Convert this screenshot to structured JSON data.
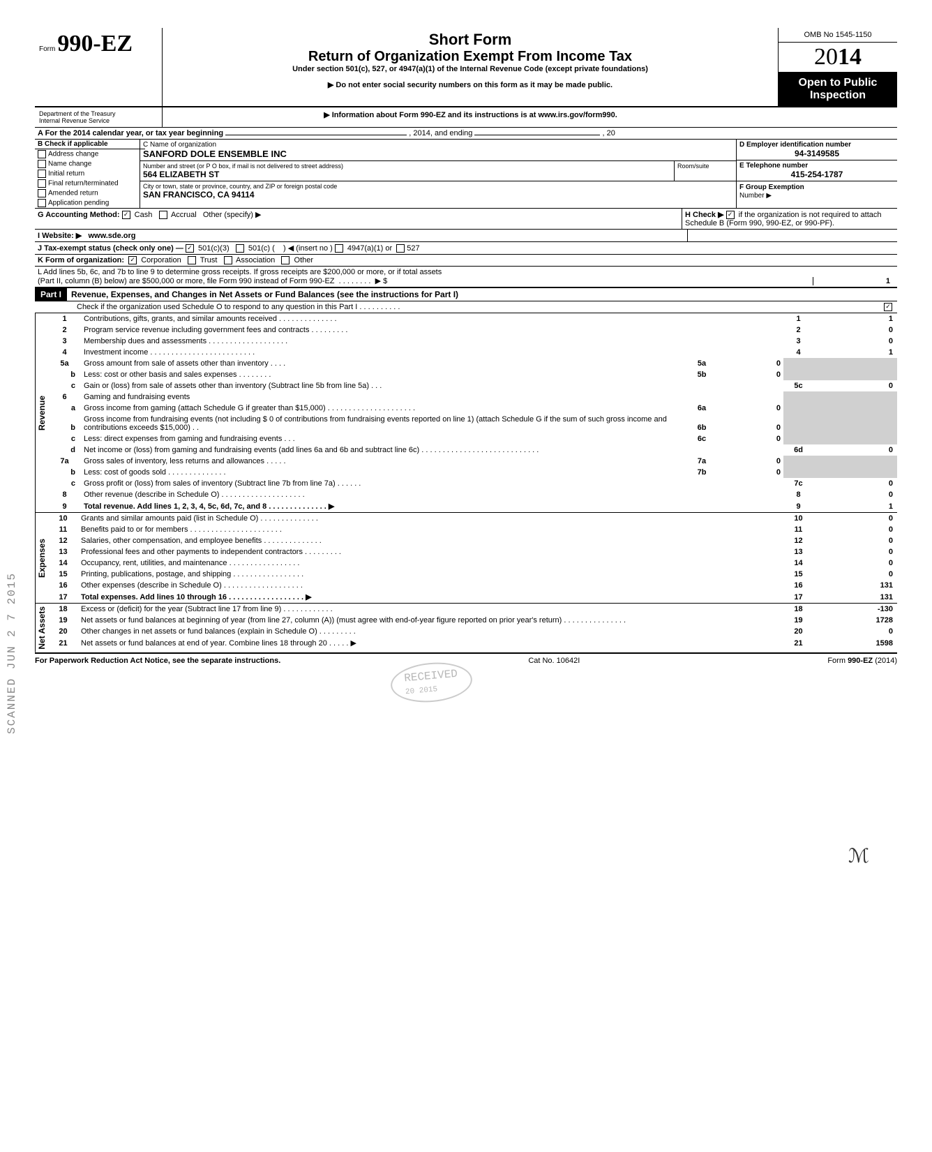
{
  "header": {
    "form_label": "Form",
    "form_number": "990-EZ",
    "title_main": "Short Form",
    "title_sub": "Return of Organization Exempt From Income Tax",
    "title_under": "Under section 501(c), 527, or 4947(a)(1) of the Internal Revenue Code (except private foundations)",
    "arrow1": "▶ Do not enter social security numbers on this form as it may be made public.",
    "arrow2": "▶ Information about Form 990-EZ and its instructions is at www.irs.gov/form990.",
    "omb": "OMB No 1545-1150",
    "year": "2014",
    "open": "Open to Public Inspection",
    "dept": "Department of the Treasury\nInternal Revenue Service"
  },
  "A": {
    "label": "A For the 2014 calendar year, or tax year beginning",
    "mid": ", 2014, and ending",
    "end": ", 20"
  },
  "B": {
    "label": "B Check if applicable",
    "items": [
      "Address change",
      "Name change",
      "Initial return",
      "Final return/terminated",
      "Amended return",
      "Application pending"
    ]
  },
  "C": {
    "label": "C Name of organization",
    "name": "SANFORD DOLE ENSEMBLE INC",
    "street_label": "Number and street (or P O box, if mail is not delivered to street address)",
    "room_label": "Room/suite",
    "street": "564 ELIZABETH ST",
    "city_label": "City or town, state or province, country, and ZIP or foreign postal code",
    "city": "SAN FRANCISCO, CA 94114"
  },
  "D": {
    "label": "D Employer identification number",
    "value": "94-3149585"
  },
  "E": {
    "label": "E Telephone number",
    "value": "415-254-1787"
  },
  "F": {
    "label": "F Group Exemption",
    "sub": "Number ▶"
  },
  "G": {
    "label": "G Accounting Method:",
    "cash": "Cash",
    "accrual": "Accrual",
    "other": "Other (specify) ▶"
  },
  "H": {
    "label": "H Check ▶",
    "text": "if the organization is not required to attach Schedule B (Form 990, 990-EZ, or 990-PF)."
  },
  "I": {
    "label": "I Website: ▶",
    "value": "www.sde.org"
  },
  "J": {
    "label": "J Tax-exempt status (check only one) —",
    "a": "501(c)(3)",
    "b": "501(c) (",
    "c": ") ◀ (insert no )",
    "d": "4947(a)(1) or",
    "e": "527"
  },
  "K": {
    "label": "K Form of organization:",
    "corp": "Corporation",
    "trust": "Trust",
    "assoc": "Association",
    "other": "Other"
  },
  "L": {
    "line1": "L Add lines 5b, 6c, and 7b to line 9 to determine gross receipts. If gross receipts are $200,000 or more, or if total assets",
    "line2": "(Part II, column (B) below) are $500,000 or more, file Form 990 instead of Form 990-EZ",
    "arrow": "▶  $",
    "val": "1"
  },
  "part1": {
    "tag": "Part I",
    "title": "Revenue, Expenses, and Changes in Net Assets or Fund Balances (see the instructions for Part I)",
    "check": "Check if the organization used Schedule O to respond to any question in this Part I . . . . . . . . . .",
    "checked": "✓"
  },
  "sections": {
    "revenue": "Revenue",
    "expenses": "Expenses",
    "netassets": "Net Assets"
  },
  "lines": [
    {
      "n": "1",
      "d": "Contributions, gifts, grants, and similar amounts received . . . . . . . . . . . . . .",
      "nc": "1",
      "v": "1"
    },
    {
      "n": "2",
      "d": "Program service revenue including government fees and contracts . . . . . . . . .",
      "nc": "2",
      "v": "0"
    },
    {
      "n": "3",
      "d": "Membership dues and assessments . . . .   . . . . . . . . . . . . . . .",
      "nc": "3",
      "v": "0"
    },
    {
      "n": "4",
      "d": "Investment income   . . . . . . . . . . . . . . . . . . . . . . . . .",
      "nc": "4",
      "v": "1"
    },
    {
      "n": "5a",
      "d": "Gross amount from sale of assets other than inventory . . . .",
      "mn": "5a",
      "mv": "0"
    },
    {
      "n": "b",
      "d": "Less: cost or other basis and sales expenses . . . . . . . .",
      "mn": "5b",
      "mv": "0"
    },
    {
      "n": "c",
      "d": "Gain or (loss) from sale of assets other than inventory (Subtract line 5b from line 5a) . . .",
      "nc": "5c",
      "v": "0"
    },
    {
      "n": "6",
      "d": "Gaming and fundraising events"
    },
    {
      "n": "a",
      "d": "Gross income from gaming (attach Schedule G if greater than $15,000) . . . . . . . . . . . . . . . . . . . . .",
      "mn": "6a",
      "mv": "0"
    },
    {
      "n": "b",
      "d": "Gross income from fundraising events (not including  $                0 of contributions from fundraising events reported on line 1) (attach Schedule G if the sum of such gross income and contributions exceeds $15,000) . .",
      "mn": "6b",
      "mv": "0"
    },
    {
      "n": "c",
      "d": "Less: direct expenses from gaming and fundraising events . . .",
      "mn": "6c",
      "mv": "0"
    },
    {
      "n": "d",
      "d": "Net income or (loss) from gaming and fundraising events (add lines 6a and 6b and subtract line 6c)  . . . . . . . . . . . . . . . . . . . . . . . . . . . .",
      "nc": "6d",
      "v": "0"
    },
    {
      "n": "7a",
      "d": "Gross sales of inventory, less returns and allowances . . . . .",
      "mn": "7a",
      "mv": "0"
    },
    {
      "n": "b",
      "d": "Less: cost of goods sold   . . . . . . . . . . . . . .",
      "mn": "7b",
      "mv": "0"
    },
    {
      "n": "c",
      "d": "Gross profit or (loss) from sales of inventory (Subtract line 7b from line 7a) . . . . . .",
      "nc": "7c",
      "v": "0"
    },
    {
      "n": "8",
      "d": "Other revenue (describe in Schedule O) . . . . . . . . . . . . . . . . . . . .",
      "nc": "8",
      "v": "0"
    },
    {
      "n": "9",
      "d": "Total revenue. Add lines 1, 2, 3, 4, 5c, 6d, 7c, and 8  . . . . . . . . . . . . . . ▶",
      "nc": "9",
      "v": "1",
      "bold": true
    }
  ],
  "exp": [
    {
      "n": "10",
      "d": "Grants and similar amounts paid (list in Schedule O)   . . . . . . . . . . . . . .",
      "nc": "10",
      "v": "0"
    },
    {
      "n": "11",
      "d": "Benefits paid to or for members  . . . . . . . . . . . . . . . . . . . . . .",
      "nc": "11",
      "v": "0"
    },
    {
      "n": "12",
      "d": "Salaries, other compensation, and employee benefits . . . . . . . . . . . . . .",
      "nc": "12",
      "v": "0"
    },
    {
      "n": "13",
      "d": "Professional fees and other payments to independent contractors . . . . . . . . .",
      "nc": "13",
      "v": "0"
    },
    {
      "n": "14",
      "d": "Occupancy, rent, utilities, and maintenance  . . . . . . . . . . . . . . . . .",
      "nc": "14",
      "v": "0"
    },
    {
      "n": "15",
      "d": "Printing, publications, postage, and shipping . . . . . . . . . . . . . . . . .",
      "nc": "15",
      "v": "0"
    },
    {
      "n": "16",
      "d": "Other expenses (describe in Schedule O) . . . . . . . . . . . . . . . . . . .",
      "nc": "16",
      "v": "131"
    },
    {
      "n": "17",
      "d": "Total expenses. Add lines 10 through 16 . . . . . . . . . . . . . . . . . . ▶",
      "nc": "17",
      "v": "131",
      "bold": true
    }
  ],
  "net": [
    {
      "n": "18",
      "d": "Excess or (deficit) for the year (Subtract line 17 from line 9) . . . . . . . . . . . .",
      "nc": "18",
      "v": "-130"
    },
    {
      "n": "19",
      "d": "Net assets or fund balances at beginning of year (from line 27, column (A)) (must agree with end-of-year figure reported on prior year's return)  . . . . . . . . . . . . . . .",
      "nc": "19",
      "v": "1728"
    },
    {
      "n": "20",
      "d": "Other changes in net assets or fund balances (explain in Schedule O) . . . . . . . . .",
      "nc": "20",
      "v": "0"
    },
    {
      "n": "21",
      "d": "Net assets or fund balances at end of year. Combine lines 18 through 20  . . . . . ▶",
      "nc": "21",
      "v": "1598"
    }
  ],
  "footer": {
    "left": "For Paperwork Reduction Act Notice, see the separate instructions.",
    "mid": "Cat No. 10642I",
    "right": "Form 990-EZ (2014)"
  },
  "stamp": {
    "received": "RECEIVED",
    "date": "20 2015"
  },
  "sidestamp": "SCANNED JUN 2 7 2015",
  "sig": "ℳ"
}
